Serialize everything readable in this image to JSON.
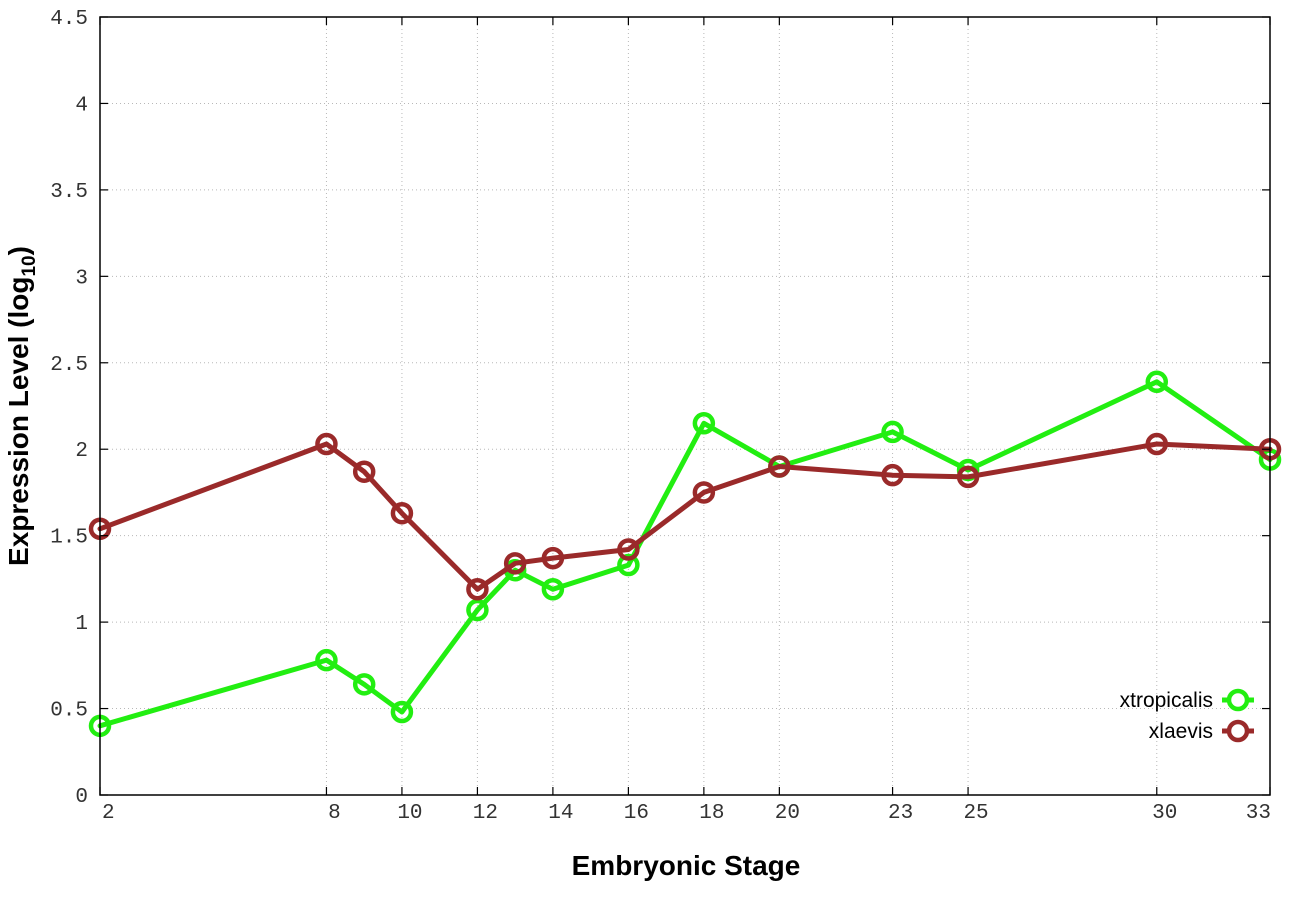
{
  "chart_data": {
    "type": "line",
    "title": "",
    "xlabel": "Embryonic Stage",
    "ylabel_main": "Expression Level (log",
    "ylabel_sub": "10",
    "ylabel_close": ")",
    "x": [
      2,
      8,
      9,
      10,
      12,
      13,
      14,
      16,
      18,
      20,
      23,
      25,
      30,
      33
    ],
    "x_ticks": [
      2,
      8,
      10,
      12,
      14,
      16,
      18,
      20,
      23,
      25,
      30,
      33
    ],
    "y_ticks": [
      "0",
      "0.5",
      "1",
      "1.5",
      "2",
      "2.5",
      "3",
      "3.5",
      "4",
      "4.5"
    ],
    "xlim": [
      2,
      33
    ],
    "ylim": [
      0,
      4.5
    ],
    "grid": true,
    "legend_position": "bottom-right",
    "series": [
      {
        "name": "xtropicalis",
        "color": "#22ee11",
        "values": [
          0.4,
          0.78,
          0.64,
          0.48,
          1.07,
          1.3,
          1.19,
          1.33,
          2.15,
          1.9,
          2.1,
          1.88,
          2.39,
          1.94
        ]
      },
      {
        "name": "xlaevis",
        "color": "#9a2a2a",
        "values": [
          1.54,
          2.03,
          1.87,
          1.63,
          1.19,
          1.34,
          1.37,
          1.42,
          1.75,
          1.9,
          1.85,
          1.84,
          2.03,
          2.0
        ]
      }
    ]
  }
}
